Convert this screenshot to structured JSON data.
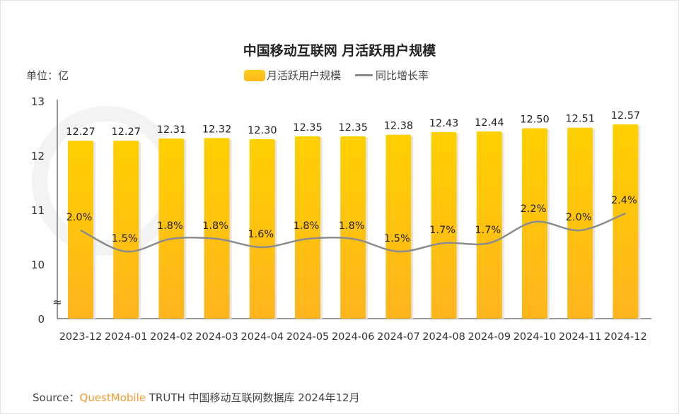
{
  "title": "中国移动互联网 月活跃用户规模",
  "unit_label": "单位：亿",
  "legend": {
    "bar": "月活跃用户规模",
    "line": "同比增长率"
  },
  "source": {
    "prefix": "Source：",
    "brand": "QuestMobile",
    "rest": "TRUTH 中国移动互联网数据库 2024年12月"
  },
  "colors": {
    "bar_top": "#ffd000",
    "bar_bottom": "#ffb51e",
    "line": "#8c8c8c",
    "brand": "#f29a2e"
  },
  "chart_data": {
    "type": "bar+line",
    "categories": [
      "2023-12",
      "2024-01",
      "2024-02",
      "2024-03",
      "2024-04",
      "2024-05",
      "2024-06",
      "2024-07",
      "2024-08",
      "2024-09",
      "2024-10",
      "2024-11",
      "2024-12"
    ],
    "series": [
      {
        "name": "月活跃用户规模",
        "type": "bar",
        "values": [
          12.27,
          12.27,
          12.31,
          12.32,
          12.3,
          12.35,
          12.35,
          12.38,
          12.43,
          12.44,
          12.5,
          12.51,
          12.57
        ],
        "labels": [
          "12.27",
          "12.27",
          "12.31",
          "12.32",
          "12.30",
          "12.35",
          "12.35",
          "12.38",
          "12.43",
          "12.44",
          "12.50",
          "12.51",
          "12.57"
        ]
      },
      {
        "name": "同比增长率",
        "type": "line",
        "values": [
          2.0,
          1.5,
          1.8,
          1.8,
          1.6,
          1.8,
          1.8,
          1.5,
          1.7,
          1.7,
          2.2,
          2.0,
          2.4
        ],
        "labels": [
          "2.0%",
          "1.5%",
          "1.8%",
          "1.8%",
          "1.6%",
          "1.8%",
          "1.8%",
          "1.5%",
          "1.7%",
          "1.7%",
          "2.2%",
          "2.0%",
          "2.4%"
        ]
      }
    ],
    "y_ticks": [
      "0",
      "10",
      "11",
      "12",
      "13"
    ],
    "ylim": [
      10,
      13
    ],
    "axis_break": true,
    "grid": false,
    "legend_position": "top"
  }
}
